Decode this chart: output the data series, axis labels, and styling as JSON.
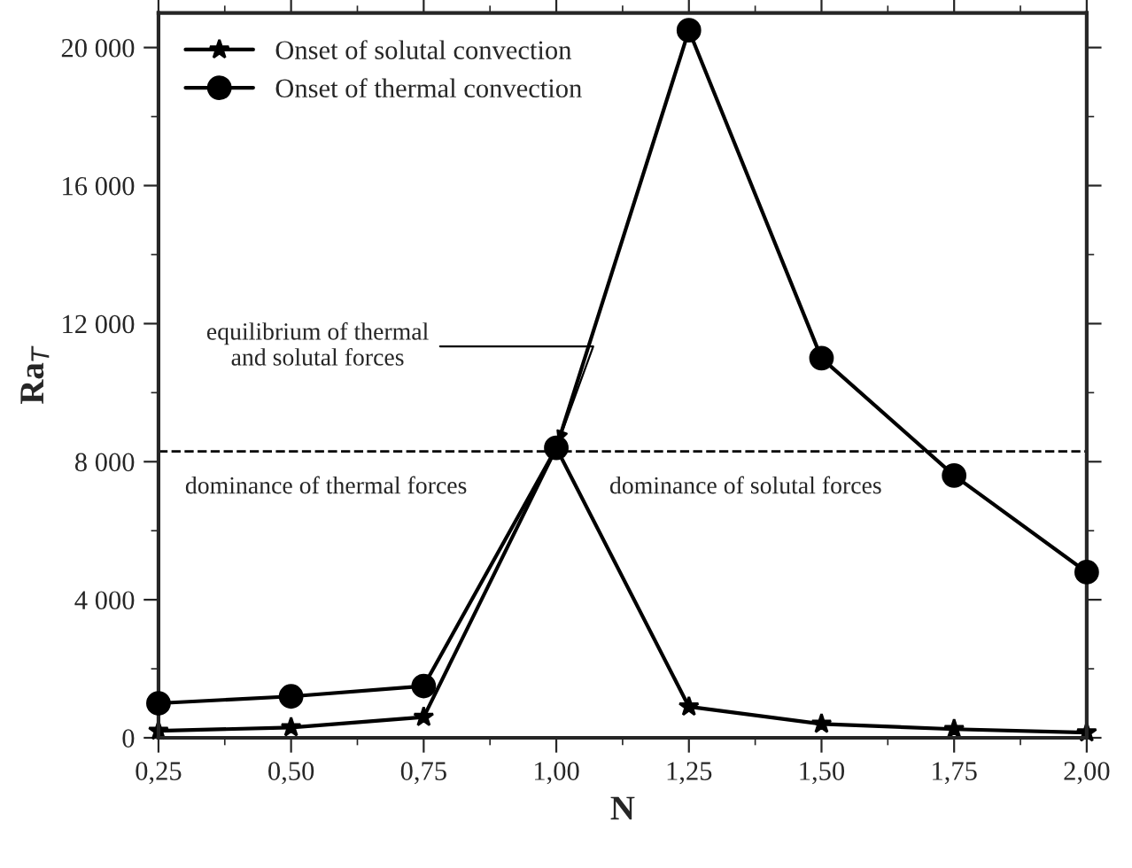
{
  "chart_data": {
    "type": "line",
    "xlabel": "N",
    "ylabel": "Ra$_{T}$",
    "x": [
      0.25,
      0.5,
      0.75,
      1.0,
      1.25,
      1.5,
      1.75,
      2.0
    ],
    "series": [
      {
        "name": "Onset of solutal convection",
        "color": "#000000",
        "marker": "star",
        "values": [
          200,
          300,
          600,
          8400,
          900,
          400,
          250,
          150
        ]
      },
      {
        "name": "Onset of thermal convection",
        "color": "#000000",
        "marker": "circle",
        "values": [
          1000,
          1200,
          1500,
          8400,
          20500,
          11000,
          7600,
          4800
        ]
      }
    ],
    "xlim": [
      0.25,
      2.0
    ],
    "xticks": [
      {
        "value": 0.25,
        "label": "0,25"
      },
      {
        "value": 0.5,
        "label": "0,50"
      },
      {
        "value": 0.75,
        "label": "0,75"
      },
      {
        "value": 1.0,
        "label": "1,00"
      },
      {
        "value": 1.25,
        "label": "1,25"
      },
      {
        "value": 1.5,
        "label": "1,50"
      },
      {
        "value": 1.75,
        "label": "1,75"
      },
      {
        "value": 2.0,
        "label": "2,00"
      }
    ],
    "ylim": [
      0,
      21000
    ],
    "yticks": [
      {
        "value": 0,
        "label": "0"
      },
      {
        "value": 4000,
        "label": "4 000"
      },
      {
        "value": 8000,
        "label": "8 000"
      },
      {
        "value": 12000,
        "label": "12 000"
      },
      {
        "value": 16000,
        "label": "16 000"
      },
      {
        "value": 20000,
        "label": "20 000"
      }
    ],
    "ref_lines": [
      {
        "axis": "y",
        "value": 8300,
        "line_style": "dashed",
        "color": "#000000"
      }
    ],
    "annotations": [
      {
        "text": "equilibrium of thermal\nand solutal forces",
        "x": 1.0,
        "y": 8400
      },
      "dominance of thermal forces",
      "dominance of solutal forces"
    ],
    "legend": "top left",
    "grid": false,
    "line_style": "solid"
  }
}
